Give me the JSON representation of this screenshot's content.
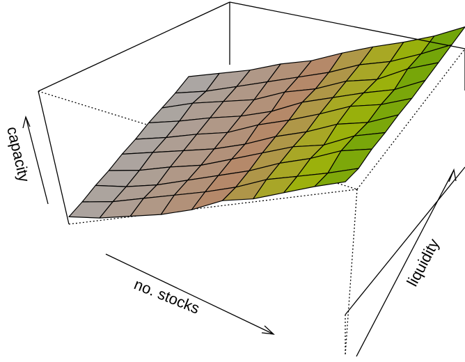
{
  "chart_data": {
    "type": "surface3d",
    "title": "",
    "xlabel": "no. stocks",
    "ylabel": "liquidity",
    "zlabel": "capacity",
    "grid_size": [
      10,
      10
    ],
    "z": [
      [
        0.05,
        0.11,
        0.19,
        0.27,
        0.37,
        0.5,
        0.58,
        0.69,
        0.8,
        0.9
      ],
      [
        0.04,
        0.11,
        0.2,
        0.29,
        0.38,
        0.48,
        0.6,
        0.69,
        0.78,
        0.88
      ],
      [
        0.04,
        0.1,
        0.18,
        0.28,
        0.38,
        0.48,
        0.6,
        0.7,
        0.82,
        0.9
      ],
      [
        0.03,
        0.1,
        0.19,
        0.27,
        0.38,
        0.49,
        0.6,
        0.68,
        0.81,
        0.9
      ],
      [
        0.03,
        0.11,
        0.19,
        0.27,
        0.37,
        0.49,
        0.59,
        0.71,
        0.79,
        0.91
      ],
      [
        0.02,
        0.1,
        0.19,
        0.27,
        0.39,
        0.49,
        0.6,
        0.72,
        0.8,
        0.91
      ],
      [
        0.02,
        0.1,
        0.19,
        0.27,
        0.37,
        0.5,
        0.6,
        0.7,
        0.79,
        0.92
      ],
      [
        0.01,
        0.11,
        0.19,
        0.27,
        0.39,
        0.48,
        0.6,
        0.68,
        0.82,
        0.93
      ],
      [
        0.0,
        0.08,
        0.18,
        0.28,
        0.38,
        0.48,
        0.6,
        0.69,
        0.81,
        0.94
      ],
      [
        0.0,
        0.09,
        0.18,
        0.29,
        0.38,
        0.5,
        0.61,
        0.71,
        0.82,
        0.95
      ]
    ],
    "colors": {
      "low": "#aaa9a9",
      "mid": "#b58867",
      "upper": "#a3b30d",
      "high": "#4e9a06"
    }
  }
}
